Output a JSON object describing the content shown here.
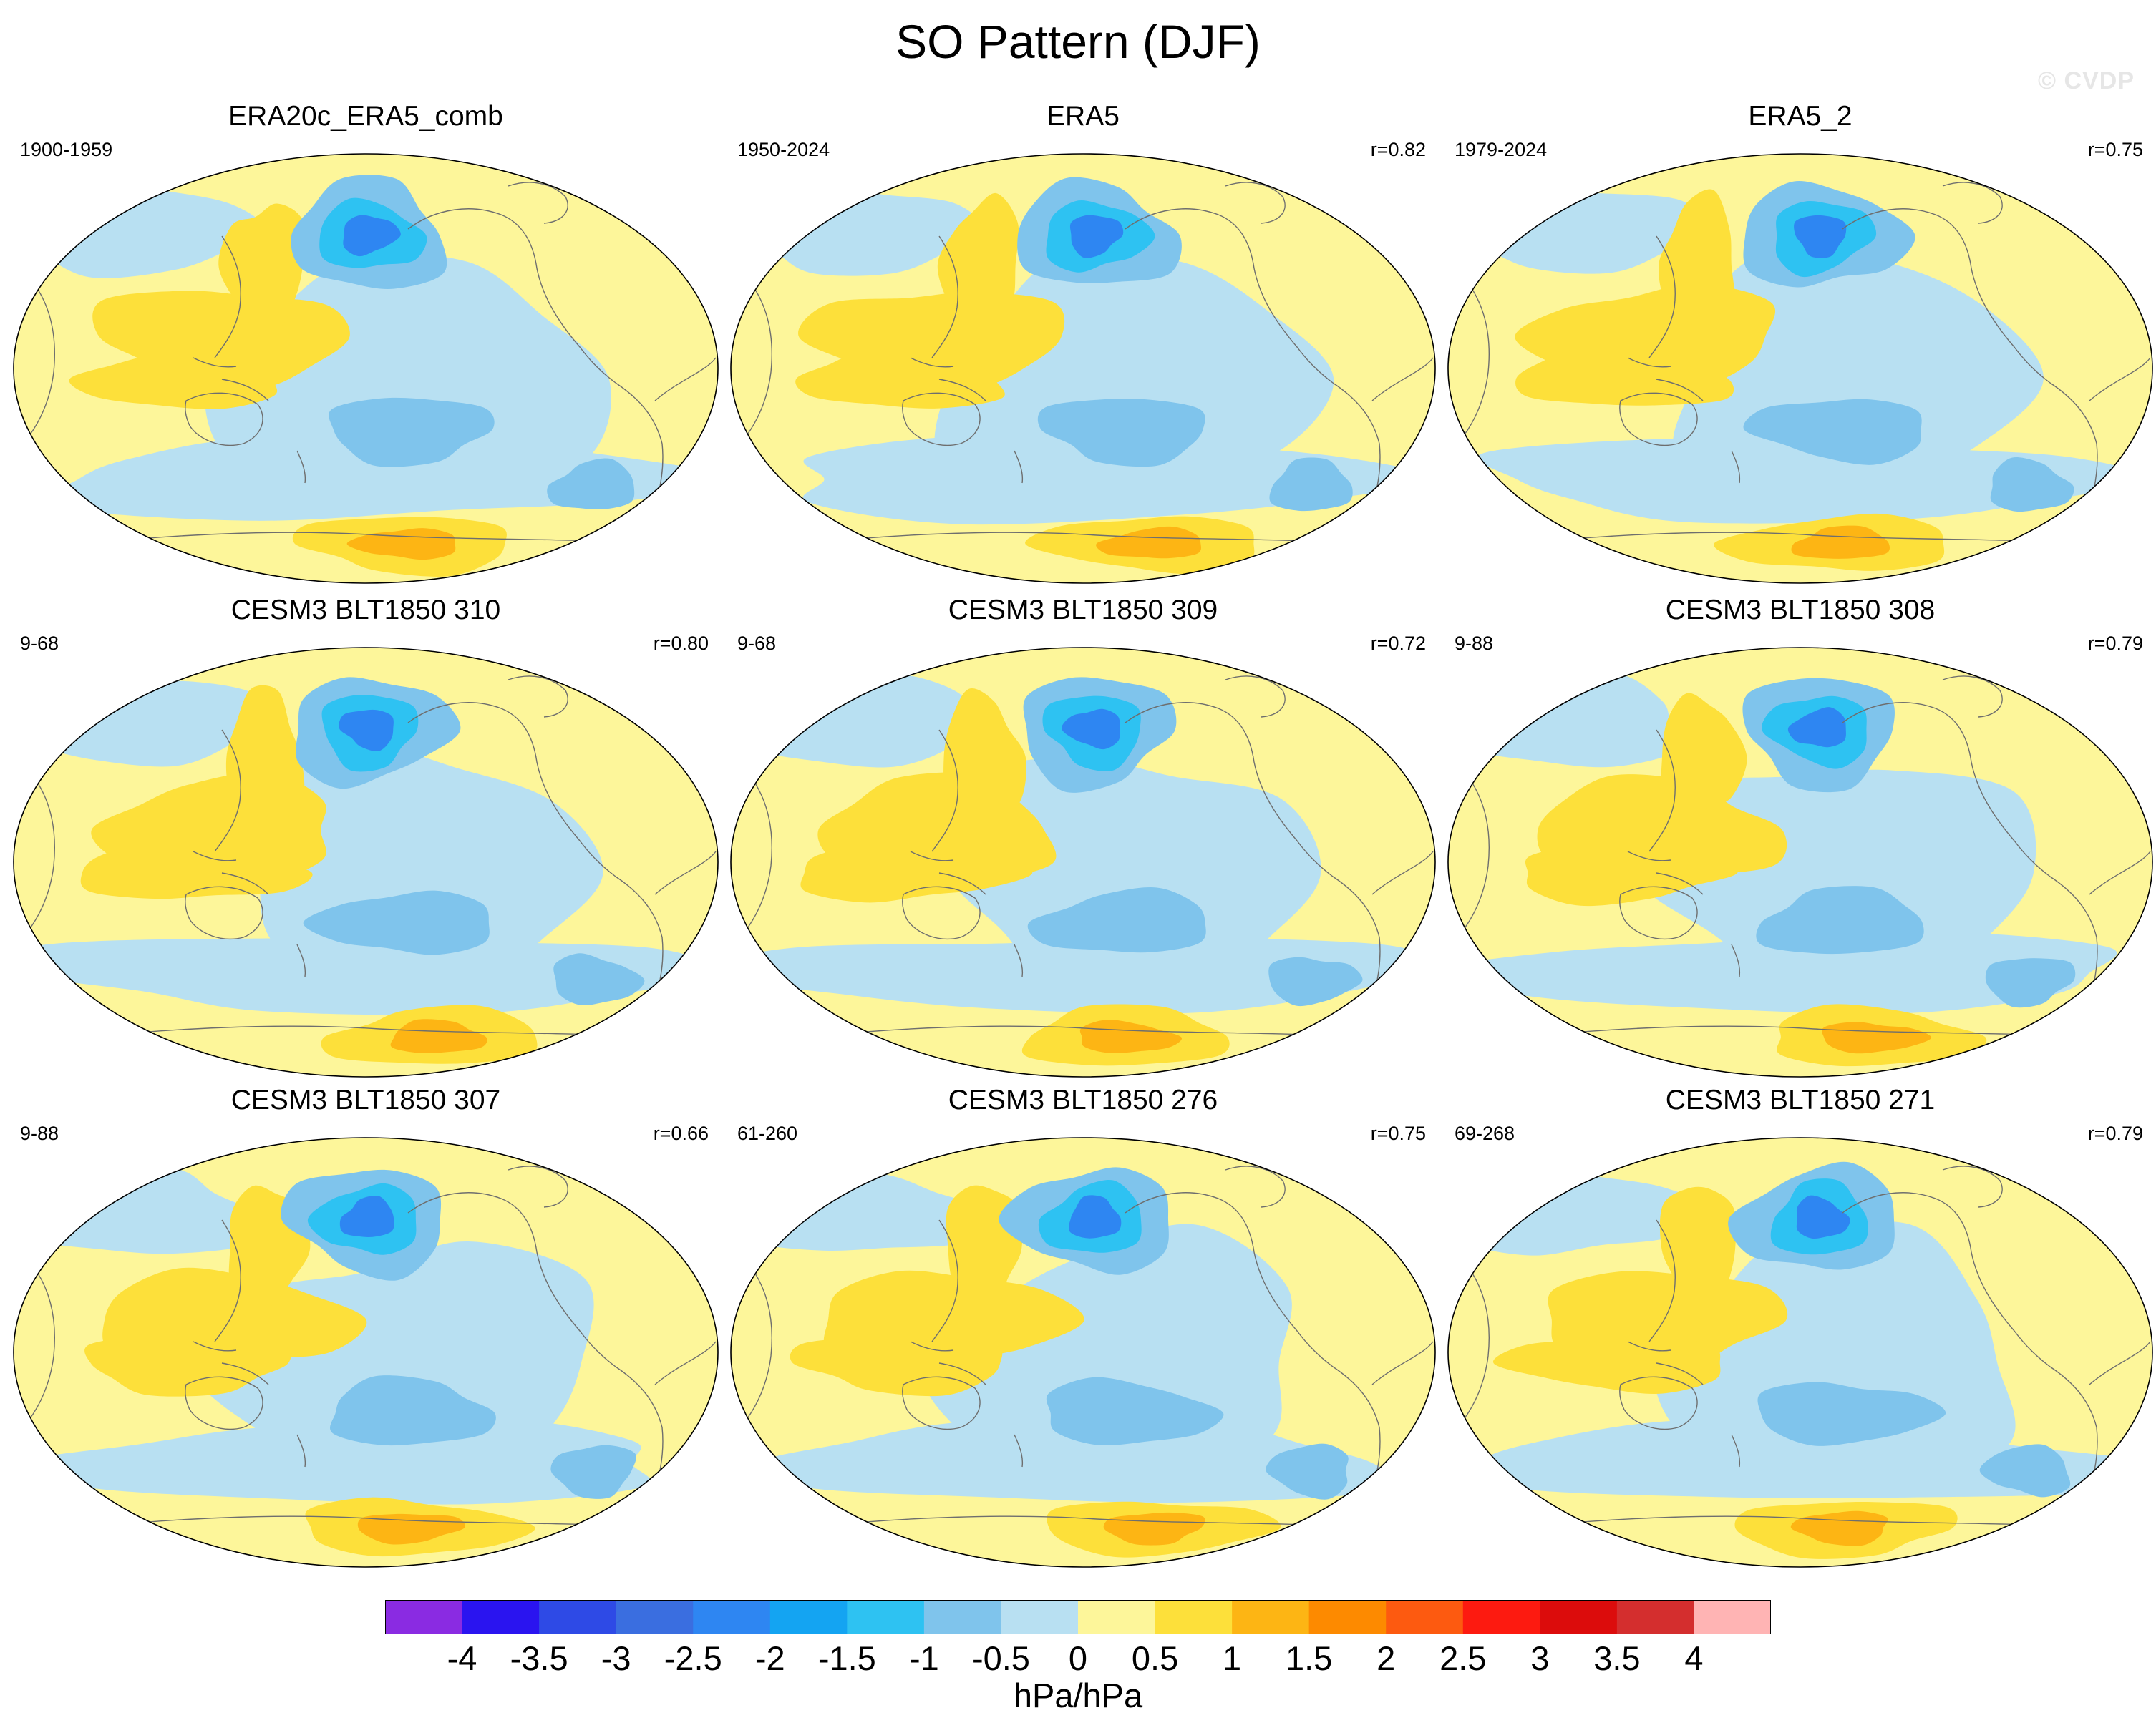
{
  "title": "SO Pattern (DJF)",
  "watermark": "© CVDP",
  "panels": [
    {
      "title": "ERA20c_ERA5_comb",
      "years": "1900-1959",
      "corr": ""
    },
    {
      "title": "ERA5",
      "years": "1950-2024",
      "corr": "r=0.82"
    },
    {
      "title": "ERA5_2",
      "years": "1979-2024",
      "corr": "r=0.75"
    },
    {
      "title": "CESM3 BLT1850 310",
      "years": "9-68",
      "corr": "r=0.80"
    },
    {
      "title": "CESM3 BLT1850 309",
      "years": "9-68",
      "corr": "r=0.72"
    },
    {
      "title": "CESM3 BLT1850 308",
      "years": "9-88",
      "corr": "r=0.79"
    },
    {
      "title": "CESM3 BLT1850 307",
      "years": "9-88",
      "corr": "r=0.66"
    },
    {
      "title": "CESM3 BLT1850 276",
      "years": "61-260",
      "corr": "r=0.75"
    },
    {
      "title": "CESM3 BLT1850 271",
      "years": "69-268",
      "corr": "r=0.79"
    }
  ],
  "colorbar": {
    "units": "hPa/hPa",
    "ticks": [
      "-4",
      "-3.5",
      "-3",
      "-2.5",
      "-2",
      "-1.5",
      "-1",
      "-0.5",
      "0",
      "0.5",
      "1",
      "1.5",
      "2",
      "2.5",
      "3",
      "3.5",
      "4"
    ],
    "colors": [
      "#8a2be2",
      "#2a14f0",
      "#2e4ae6",
      "#3a6ee0",
      "#2e86f2",
      "#14a4f2",
      "#2ec2f2",
      "#7fc4ec",
      "#b8e0f2",
      "#fdf69a",
      "#fde03a",
      "#fdb514",
      "#fd8a00",
      "#fd5a10",
      "#fd1a10",
      "#dc0c0c",
      "#d42e2e",
      "#ffb4b4"
    ]
  },
  "palette": {
    "ocean_light_blue": "#b8e0f2",
    "light_yellow": "#fdf69a",
    "mid_blue": "#7fc4ec",
    "deep_blue": "#2e86f2",
    "orange": "#fdb514",
    "coastline": "#6e6e6e"
  }
}
